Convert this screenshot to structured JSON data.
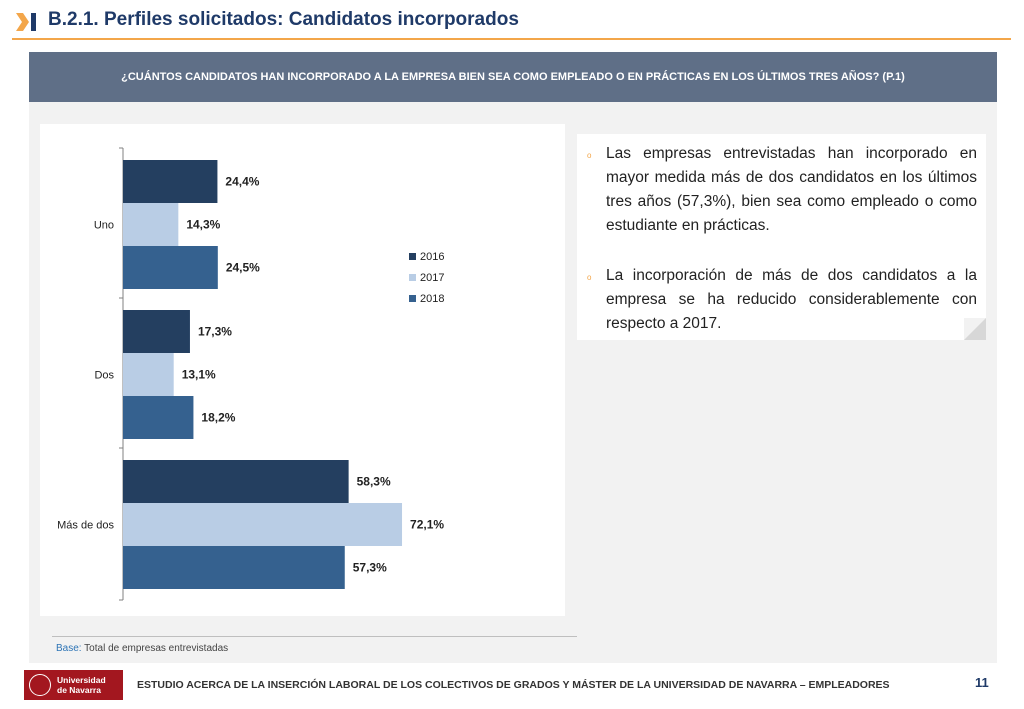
{
  "header": {
    "title": "B.2.1. Perfiles solicitados: Candidatos incorporados",
    "question": "¿CUÁNTOS CANDIDATOS HAN INCORPORADO A LA EMPRESA BIEN SEA COMO EMPLEADO O EN PRÁCTICAS EN LOS ÚLTIMOS TRES AÑOS? (P.1)"
  },
  "chart_data": {
    "type": "bar",
    "orientation": "horizontal",
    "categories": [
      "Uno",
      "Dos",
      "Más de dos"
    ],
    "series": [
      {
        "name": "2016",
        "values": [
          24.4,
          17.3,
          58.3
        ],
        "labels": [
          "24,4%",
          "17,3%",
          "58,3%"
        ],
        "color": "#243f60"
      },
      {
        "name": "2017",
        "values": [
          14.3,
          13.1,
          72.1
        ],
        "labels": [
          "14,3%",
          "13,1%",
          "72,1%"
        ],
        "color": "#b9cde5"
      },
      {
        "name": "2018",
        "values": [
          24.5,
          18.2,
          57.3
        ],
        "labels": [
          "24,5%",
          "18,2%",
          "57,3%"
        ],
        "color": "#35618f"
      }
    ],
    "legend_position": "right",
    "grid": false
  },
  "bullets": [
    "Las empresas entrevistadas han incorporado en mayor medida más de dos candidatos en los últimos tres años (57,3%), bien sea como empleado o como estudiante en prácticas.",
    "La incorporación de más de dos candidatos a la empresa se ha reducido considerablemente con respecto a 2017."
  ],
  "base": {
    "label": "Base:",
    "text": " Total de empresas entrevistadas"
  },
  "footer": {
    "logo_line1": "Universidad",
    "logo_line2": "de Navarra",
    "text": "ESTUDIO ACERCA DE LA INSERCIÓN LABORAL DE LOS COLECTIVOS DE GRADOS Y MÁSTER DE LA UNIVERSIDAD DE NAVARRA – EMPLEADORES",
    "page_number": "11"
  },
  "colors": {
    "accent": "#f3a64a",
    "banner": "#5f6f87",
    "title": "#1f3a68",
    "logo": "#a3171f"
  },
  "icons": {
    "title_icon": "chevron-arrow-icon",
    "bullet_icon": "circle-bullet-icon",
    "logo_icon": "university-seal-icon"
  }
}
